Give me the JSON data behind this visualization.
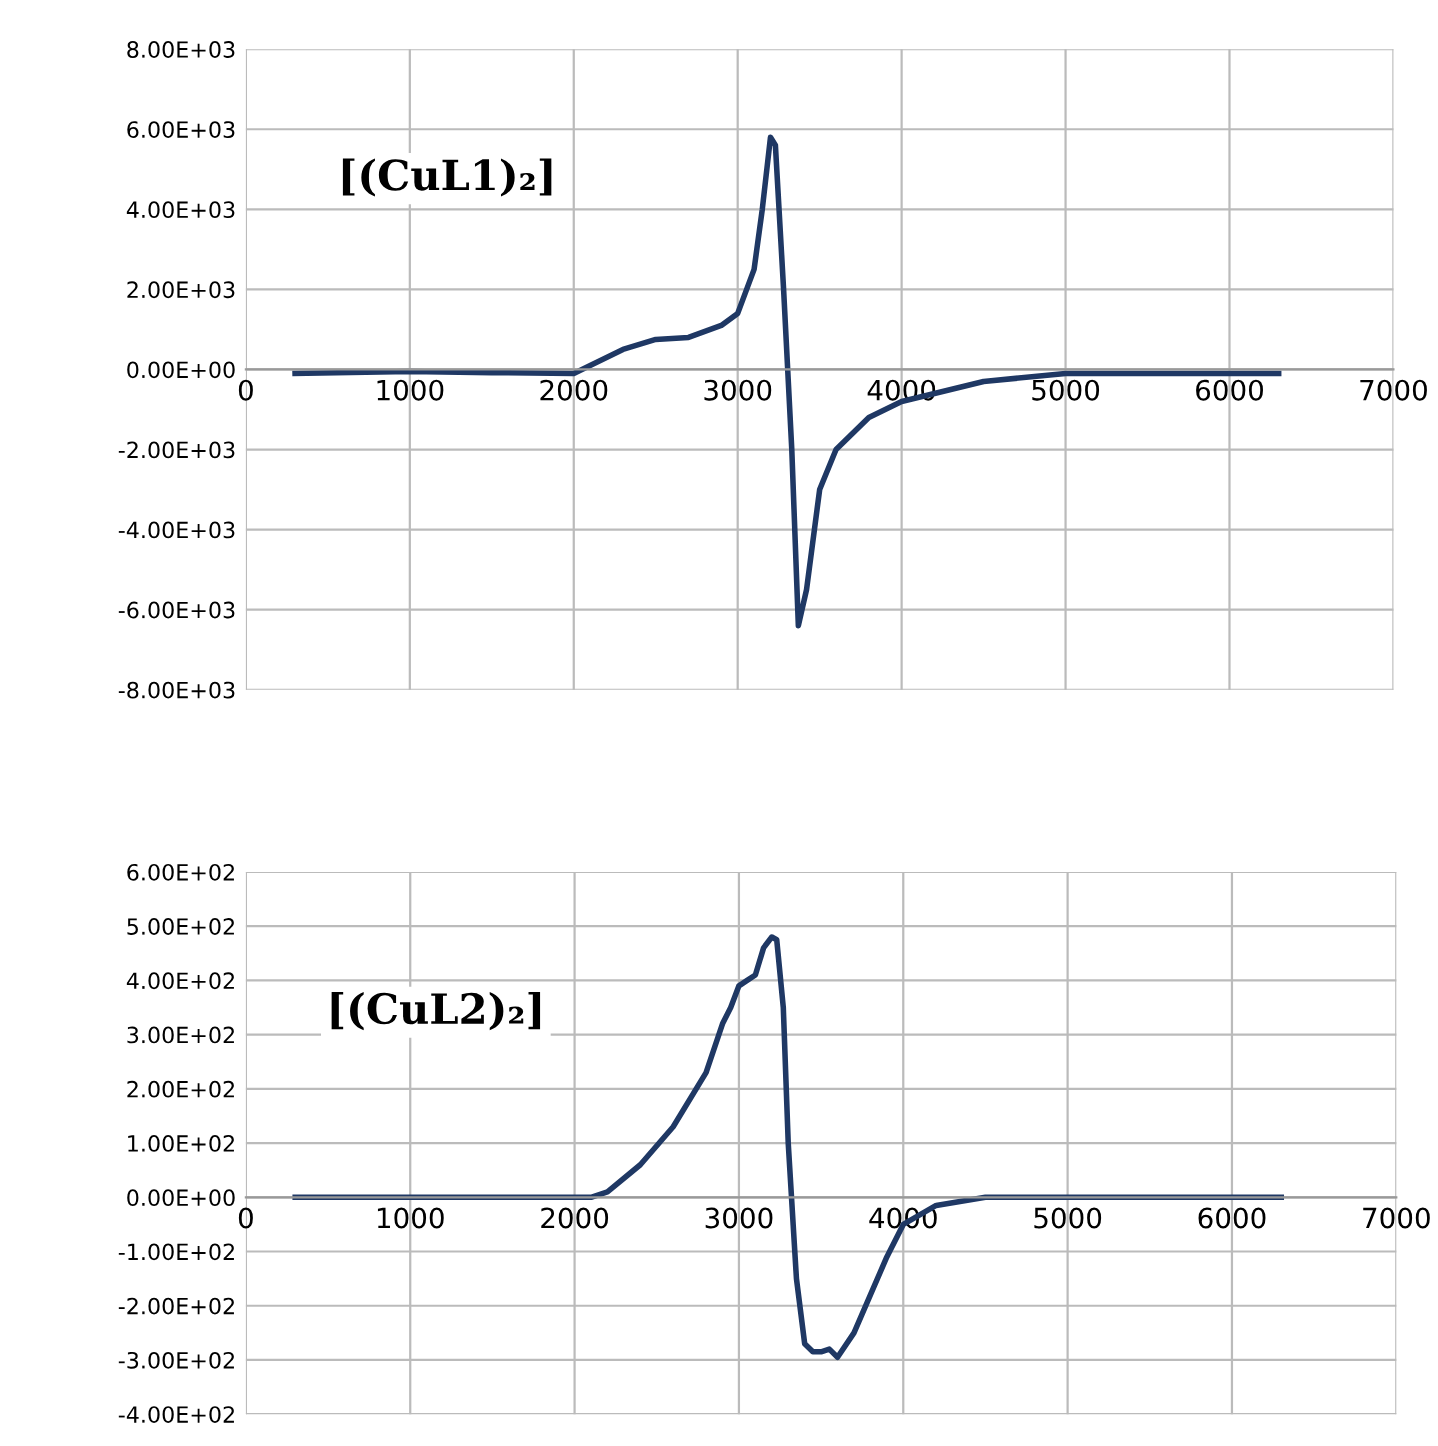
{
  "chart_data": [
    {
      "type": "line",
      "annotations": [
        "[(CuL1)₂]"
      ],
      "xlim": [
        0,
        7000
      ],
      "xticks": [
        0,
        1000,
        2000,
        3000,
        4000,
        5000,
        6000,
        7000
      ],
      "ylim": [
        -8000,
        8000
      ],
      "yticks": [
        {
          "value": -8000,
          "label": "-8.00E+03"
        },
        {
          "value": -6000,
          "label": "-6.00E+03"
        },
        {
          "value": -4000,
          "label": "-4.00E+03"
        },
        {
          "value": -2000,
          "label": "-2.00E+03"
        },
        {
          "value": 0,
          "label": "0.00E+00"
        },
        {
          "value": 2000,
          "label": "2.00E+03"
        },
        {
          "value": 4000,
          "label": "4.00E+03"
        },
        {
          "value": 6000,
          "label": "6.00E+03"
        },
        {
          "value": 8000,
          "label": "8.00E+03"
        }
      ],
      "grid": true,
      "marker": "none",
      "line_style": "solid",
      "series": [
        {
          "color": "#1f3864",
          "x": [
            300,
            1000,
            1500,
            2000,
            2100,
            2300,
            2500,
            2700,
            2900,
            3000,
            3100,
            3150,
            3200,
            3230,
            3280,
            3330,
            3370,
            3420,
            3500,
            3600,
            3800,
            4000,
            4500,
            5000,
            6300
          ],
          "values": [
            -100,
            -50,
            -80,
            -100,
            100,
            500,
            750,
            800,
            1100,
            1400,
            2500,
            4000,
            5800,
            5600,
            2000,
            -2000,
            -6400,
            -5500,
            -3000,
            -2000,
            -1200,
            -800,
            -300,
            -100,
            -100
          ]
        }
      ]
    },
    {
      "type": "line",
      "annotations": [
        "[(CuL2)₂]"
      ],
      "xlim": [
        0,
        7000
      ],
      "xticks": [
        0,
        1000,
        2000,
        3000,
        4000,
        5000,
        6000,
        7000
      ],
      "ylim": [
        -400,
        600
      ],
      "yticks": [
        {
          "value": -400,
          "label": "-4.00E+02"
        },
        {
          "value": -300,
          "label": "-3.00E+02"
        },
        {
          "value": -200,
          "label": "-2.00E+02"
        },
        {
          "value": -100,
          "label": "-1.00E+02"
        },
        {
          "value": 0,
          "label": "0.00E+00"
        },
        {
          "value": 100,
          "label": "1.00E+02"
        },
        {
          "value": 200,
          "label": "2.00E+02"
        },
        {
          "value": 300,
          "label": "3.00E+02"
        },
        {
          "value": 400,
          "label": "4.00E+02"
        },
        {
          "value": 500,
          "label": "5.00E+02"
        },
        {
          "value": 600,
          "label": "6.00E+02"
        }
      ],
      "grid": true,
      "marker": "none",
      "line_style": "solid",
      "series": [
        {
          "color": "#1f3864",
          "x": [
            300,
            2100,
            2200,
            2400,
            2600,
            2800,
            2900,
            2950,
            3000,
            3050,
            3100,
            3150,
            3200,
            3230,
            3270,
            3300,
            3350,
            3400,
            3450,
            3500,
            3550,
            3600,
            3700,
            3800,
            3900,
            4000,
            4200,
            4500,
            6300
          ],
          "values": [
            0,
            0,
            10,
            60,
            130,
            230,
            320,
            350,
            390,
            400,
            410,
            460,
            480,
            475,
            350,
            100,
            -150,
            -270,
            -285,
            -285,
            -280,
            -295,
            -250,
            -180,
            -110,
            -50,
            -15,
            0,
            0
          ]
        }
      ]
    }
  ]
}
